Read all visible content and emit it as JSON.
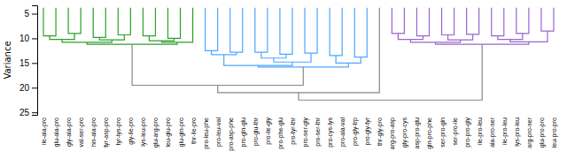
{
  "chart_data": {
    "type": "dendrogram",
    "ylabel": "Variance",
    "ylim": [
      25.5,
      3.3
    ],
    "yticks": [
      5,
      10,
      15,
      20,
      25
    ],
    "leaf_height": 3.8,
    "tree": {
      "height": 22.5,
      "color": "#888888",
      "children": [
        {
          "height": 21.0,
          "color": "#888888",
          "children": [
            {
              "height": 19.5,
              "color": "#888888",
              "children": [
                {
                  "height": 11.2,
                  "color": "#2ca02c",
                  "children": [
                    {
                      "height": 10.8,
                      "color": "#2ca02c",
                      "children": [
                        {
                          "height": 10.2,
                          "color": "#2ca02c",
                          "children": [
                            {
                              "height": 9.5,
                              "color": "#2ca02c",
                              "children": [
                                "ile-ala-pro",
                                "glu-ala-pro"
                              ]
                            },
                            {
                              "height": 9.0,
                              "color": "#2ca02c",
                              "children": [
                                "gly-ala-pro",
                                "val-ser-pro"
                              ]
                            }
                          ]
                        },
                        {
                          "height": 10.3,
                          "color": "#2ca02c",
                          "children": [
                            {
                              "height": 9.8,
                              "color": "#2ca02c",
                              "children": [
                                "his-ala-pro",
                                "tyr-asp-pro"
                              ]
                            },
                            {
                              "height": 9.3,
                              "color": "#2ca02c",
                              "children": [
                                "tyr-lys-pro",
                                "gly-ile-pro"
                              ]
                            }
                          ]
                        }
                      ]
                    },
                    {
                      "height": 10.8,
                      "color": "#2ca02c",
                      "children": [
                        {
                          "height": 10.5,
                          "color": "#2ca02c",
                          "children": [
                            {
                              "height": 9.5,
                              "color": "#2ca02c",
                              "children": [
                                "lys-leu-pro",
                                "glu-arg-pro"
                              ]
                            },
                            {
                              "height": 10.0,
                              "color": "#2ca02c",
                              "children": [
                                "leu-glu-pro",
                                "glu-gln-pro"
                              ]
                            }
                          ]
                        },
                        "thr-ile-pro"
                      ]
                    }
                  ]
                },
                {
                  "height": 15.8,
                  "color": "#4da6ff",
                  "children": [
                    {
                      "height": 15.5,
                      "color": "#4da6ff",
                      "children": [
                        {
                          "height": 13.3,
                          "color": "#4da6ff",
                          "children": [
                            {
                              "height": 12.5,
                              "color": "#4da6ff",
                              "children": [
                                "pro-leu-phe",
                                "pro-leu-val"
                              ]
                            },
                            {
                              "height": 12.8,
                              "color": "#4da6ff",
                              "children": [
                                "pro-asp-phe",
                                "pro-gln-glu"
                              ]
                            }
                          ]
                        },
                        {
                          "height": 14.8,
                          "color": "#4da6ff",
                          "children": [
                            {
                              "height": 14.0,
                              "color": "#4da6ff",
                              "children": [
                                {
                                  "height": 12.8,
                                  "color": "#4da6ff",
                                  "children": [
                                    "pro-glu-thr",
                                    "pro-ile-gly"
                                  ]
                                },
                                {
                                  "height": 13.2,
                                  "color": "#4da6ff",
                                  "children": [
                                    "pro-phe-glu",
                                    "pro-tyr-thr"
                                  ]
                                }
                              ]
                            },
                            {
                              "height": 13.0,
                              "color": "#4da6ff",
                              "children": [
                                "pro-ser-gly",
                                "pro-ser-thr"
                              ]
                            }
                          ]
                        }
                      ]
                    },
                    {
                      "height": 15.0,
                      "color": "#4da6ff",
                      "children": [
                        {
                          "height": 13.5,
                          "color": "#4da6ff",
                          "children": [
                            "pro-cys-lys",
                            "pro-ala-val"
                          ]
                        },
                        {
                          "height": 13.8,
                          "color": "#4da6ff",
                          "children": [
                            "pro-gly-trp",
                            "pro-gly-tyr"
                          ]
                        }
                      ]
                    }
                  ]
                }
              ]
            },
            "thr-gly-pro"
          ]
        },
        {
          "height": 11.2,
          "color": "#9966cc",
          "children": [
            {
              "height": 10.8,
              "color": "#9966cc",
              "children": [
                {
                  "height": 10.2,
                  "color": "#9966cc",
                  "children": [
                    {
                      "height": 9.0,
                      "color": "#9966cc",
                      "children": [
                        "arg-pro-asp",
                        "gly-pro-cys"
                      ]
                    },
                    {
                      "height": 9.5,
                      "color": "#9966cc",
                      "children": [
                        "asp-pro-glu",
                        "gln-pro-phe"
                      ]
                    }
                  ]
                },
                {
                  "height": 10.3,
                  "color": "#9966cc",
                  "children": [
                    {
                      "height": 9.3,
                      "color": "#9966cc",
                      "children": [
                        "ser-pro-gln",
                        "ser-pro-ile"
                      ]
                    },
                    {
                      "height": 9.2,
                      "color": "#9966cc",
                      "children": [
                        "pro-pro-gly",
                        "ile-pro-leu"
                      ]
                    }
                  ]
                }
              ]
            },
            {
              "height": 10.7,
              "color": "#9966cc",
              "children": [
                {
                  "height": 10.2,
                  "color": "#9966cc",
                  "children": [
                    {
                      "height": 9.5,
                      "color": "#9966cc",
                      "children": [
                        "ala-pro-ser",
                        "ile-pro-leu"
                      ]
                    },
                    {
                      "height": 9.0,
                      "color": "#9966cc",
                      "children": [
                        "lys-pro-leu",
                        "arg-pro-ser"
                      ]
                    }
                  ]
                },
                {
                  "height": 8.5,
                  "color": "#9966cc",
                  "children": [
                    "glu-pro-pro",
                    "leu-pro-pro"
                  ]
                }
              ]
            }
          ]
        }
      ]
    }
  }
}
